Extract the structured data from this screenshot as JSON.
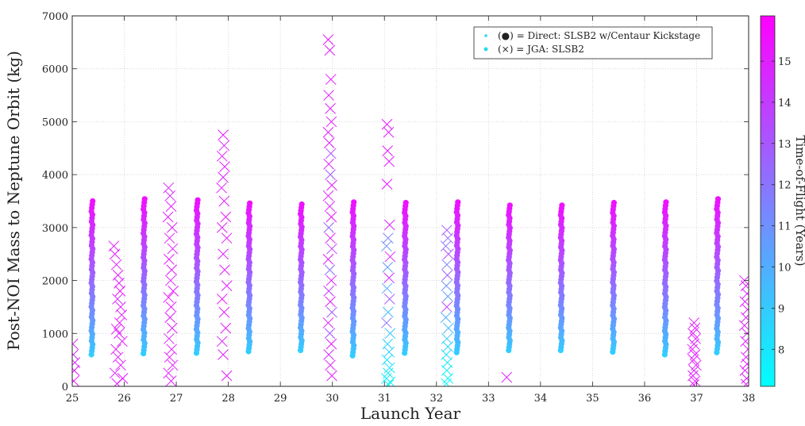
{
  "chart_data": {
    "type": "scatter",
    "xlabel": "Launch Year",
    "ylabel": "Post-NOI Mass to Neptune Orbit (kg)",
    "xlim": [
      25,
      38
    ],
    "ylim": [
      0,
      7000
    ],
    "xticks": [
      25,
      26,
      27,
      28,
      29,
      30,
      31,
      32,
      33,
      34,
      35,
      36,
      37,
      38
    ],
    "yticks": [
      0,
      1000,
      2000,
      3000,
      4000,
      5000,
      6000,
      7000
    ],
    "grid": true,
    "legend_position": "top-right",
    "colorbar": {
      "label": "Time-of-Flight (Years)",
      "range": [
        7.1,
        16.1
      ],
      "ticks": [
        8,
        9,
        10,
        11,
        12,
        13,
        14,
        15
      ],
      "colormap": "cool",
      "color_low": "#00ffff",
      "color_high": "#ff00ff"
    },
    "series": [
      {
        "name": "(●) = Direct: SLSB2 w/Centaur Kickstage",
        "marker": "dot",
        "launch_windows": [
          {
            "x": 25.38,
            "ymin": 600,
            "ymax": 3500
          },
          {
            "x": 26.38,
            "ymin": 620,
            "ymax": 3540
          },
          {
            "x": 27.4,
            "ymin": 630,
            "ymax": 3520
          },
          {
            "x": 28.4,
            "ymin": 660,
            "ymax": 3460
          },
          {
            "x": 29.4,
            "ymin": 680,
            "ymax": 3440
          },
          {
            "x": 30.4,
            "ymin": 580,
            "ymax": 3480
          },
          {
            "x": 31.4,
            "ymin": 630,
            "ymax": 3470
          },
          {
            "x": 32.4,
            "ymin": 640,
            "ymax": 3480
          },
          {
            "x": 33.4,
            "ymin": 680,
            "ymax": 3420
          },
          {
            "x": 34.4,
            "ymin": 680,
            "ymax": 3420
          },
          {
            "x": 35.4,
            "ymin": 650,
            "ymax": 3470
          },
          {
            "x": 36.4,
            "ymin": 600,
            "ymax": 3480
          },
          {
            "x": 37.4,
            "ymin": 640,
            "ymax": 3540
          }
        ]
      },
      {
        "name": "(×) = JGA: SLSB2",
        "marker": "x",
        "points": [
          [
            25.01,
            800,
            15.0
          ],
          [
            25.02,
            600,
            14.8
          ],
          [
            25.04,
            300,
            15.2
          ],
          [
            25.03,
            100,
            15.5
          ],
          [
            25.05,
            450,
            14.9
          ],
          [
            25.8,
            2650,
            15.3
          ],
          [
            25.82,
            2500,
            15.1
          ],
          [
            25.85,
            2300,
            14.9
          ],
          [
            25.88,
            2100,
            15.2
          ],
          [
            25.9,
            1950,
            15.0
          ],
          [
            25.92,
            1800,
            15.4
          ],
          [
            25.87,
            1650,
            14.8
          ],
          [
            25.93,
            1500,
            15.2
          ],
          [
            25.95,
            1350,
            15.0
          ],
          [
            25.91,
            1200,
            15.5
          ],
          [
            25.85,
            1080,
            15.3
          ],
          [
            25.9,
            1000,
            14.9
          ],
          [
            25.96,
            850,
            15.1
          ],
          [
            25.84,
            700,
            15.4
          ],
          [
            25.88,
            550,
            15.0
          ],
          [
            25.93,
            400,
            15.2
          ],
          [
            25.82,
            250,
            14.9
          ],
          [
            25.97,
            150,
            15.3
          ],
          [
            25.86,
            50,
            15.1
          ],
          [
            26.85,
            3750,
            15.0
          ],
          [
            26.88,
            3600,
            14.8
          ],
          [
            26.9,
            3400,
            15.2
          ],
          [
            26.84,
            3200,
            15.1
          ],
          [
            26.92,
            3000,
            14.9
          ],
          [
            26.87,
            2800,
            15.3
          ],
          [
            26.93,
            2600,
            15.0
          ],
          [
            26.86,
            2400,
            15.4
          ],
          [
            26.91,
            2200,
            15.2
          ],
          [
            26.89,
            2000,
            14.9
          ],
          [
            26.94,
            1800,
            15.1
          ],
          [
            26.85,
            1680,
            15.5
          ],
          [
            26.9,
            1500,
            15.3
          ],
          [
            26.88,
            1300,
            15.0
          ],
          [
            26.92,
            1100,
            15.2
          ],
          [
            26.86,
            900,
            14.8
          ],
          [
            26.91,
            700,
            15.1
          ],
          [
            26.87,
            550,
            15.4
          ],
          [
            26.93,
            400,
            15.0
          ],
          [
            26.85,
            250,
            15.2
          ],
          [
            26.9,
            100,
            15.3
          ],
          [
            27.9,
            4750,
            15.2
          ],
          [
            27.92,
            4550,
            15.0
          ],
          [
            27.88,
            4350,
            15.3
          ],
          [
            27.93,
            4150,
            15.1
          ],
          [
            27.9,
            3950,
            14.9
          ],
          [
            27.87,
            3750,
            15.2
          ],
          [
            27.92,
            3500,
            15.0
          ],
          [
            27.95,
            3200,
            15.4
          ],
          [
            27.88,
            3000,
            15.1
          ],
          [
            27.97,
            2800,
            15.3
          ],
          [
            27.9,
            2500,
            14.9
          ],
          [
            27.93,
            2200,
            15.2
          ],
          [
            27.97,
            1900,
            15.0
          ],
          [
            27.88,
            1650,
            15.3
          ],
          [
            27.92,
            1400,
            15.1
          ],
          [
            27.95,
            1100,
            15.4
          ],
          [
            27.88,
            850,
            15.0
          ],
          [
            27.9,
            600,
            15.2
          ],
          [
            27.97,
            200,
            15.1
          ],
          [
            29.92,
            6550,
            15.2
          ],
          [
            29.95,
            6350,
            15.0
          ],
          [
            29.97,
            5800,
            15.3
          ],
          [
            29.93,
            5500,
            15.1
          ],
          [
            29.96,
            5250,
            14.9
          ],
          [
            29.98,
            5000,
            15.2
          ],
          [
            29.92,
            4800,
            15.0
          ],
          [
            29.94,
            4600,
            15.3
          ],
          [
            29.97,
            4400,
            13.5
          ],
          [
            29.93,
            4200,
            15.1
          ],
          [
            29.96,
            4000,
            13.0
          ],
          [
            29.99,
            3800,
            15.2
          ],
          [
            29.92,
            3600,
            15.0
          ],
          [
            29.95,
            3400,
            14.8
          ],
          [
            29.98,
            3200,
            15.3
          ],
          [
            29.93,
            3000,
            12.5
          ],
          [
            29.96,
            2800,
            15.1
          ],
          [
            29.99,
            2600,
            13.8
          ],
          [
            29.92,
            2400,
            15.0
          ],
          [
            29.95,
            2200,
            12.0
          ],
          [
            29.98,
            2000,
            15.2
          ],
          [
            29.93,
            1800,
            14.0
          ],
          [
            29.96,
            1600,
            15.1
          ],
          [
            29.99,
            1400,
            12.8
          ],
          [
            29.92,
            1200,
            15.0
          ],
          [
            29.95,
            1000,
            13.2
          ],
          [
            29.98,
            800,
            15.3
          ],
          [
            29.93,
            600,
            14.5
          ],
          [
            29.96,
            400,
            15.1
          ],
          [
            29.99,
            200,
            15.0
          ],
          [
            31.05,
            4950,
            15.2
          ],
          [
            31.08,
            4800,
            15.0
          ],
          [
            31.06,
            4450,
            15.3
          ],
          [
            31.09,
            4250,
            15.1
          ],
          [
            31.05,
            3820,
            15.2
          ],
          [
            31.1,
            3050,
            14.8
          ],
          [
            31.07,
            2800,
            11.5
          ],
          [
            31.04,
            2650,
            11.0
          ],
          [
            31.11,
            2450,
            15.0
          ],
          [
            31.06,
            2250,
            10.5
          ],
          [
            31.09,
            2050,
            14.5
          ],
          [
            31.05,
            1850,
            10.0
          ],
          [
            31.1,
            1650,
            13.0
          ],
          [
            31.07,
            1400,
            9.5
          ],
          [
            31.04,
            1200,
            12.0
          ],
          [
            31.11,
            1000,
            9.0
          ],
          [
            31.06,
            800,
            8.5
          ],
          [
            31.09,
            650,
            8.8
          ],
          [
            31.05,
            500,
            8.2
          ],
          [
            31.1,
            350,
            8.0
          ],
          [
            31.07,
            250,
            7.8
          ],
          [
            31.04,
            150,
            7.6
          ],
          [
            31.11,
            80,
            7.5
          ],
          [
            31.08,
            30,
            7.4
          ],
          [
            32.2,
            2950,
            13.0
          ],
          [
            32.22,
            2800,
            12.5
          ],
          [
            32.18,
            2650,
            12.0
          ],
          [
            32.23,
            2500,
            13.5
          ],
          [
            32.2,
            2300,
            11.5
          ],
          [
            32.21,
            2100,
            12.8
          ],
          [
            32.19,
            1900,
            11.0
          ],
          [
            32.22,
            1700,
            10.5
          ],
          [
            32.2,
            1500,
            14.0
          ],
          [
            32.18,
            1300,
            10.0
          ],
          [
            32.23,
            1100,
            9.5
          ],
          [
            32.2,
            900,
            9.0
          ],
          [
            32.22,
            750,
            8.5
          ],
          [
            32.19,
            600,
            8.2
          ],
          [
            32.21,
            450,
            8.0
          ],
          [
            32.2,
            300,
            7.8
          ],
          [
            32.22,
            150,
            7.5
          ],
          [
            32.19,
            50,
            7.3
          ],
          [
            33.35,
            170,
            15.0
          ],
          [
            36.95,
            1200,
            15.2
          ],
          [
            36.97,
            1100,
            15.0
          ],
          [
            36.93,
            1000,
            15.3
          ],
          [
            36.98,
            900,
            15.1
          ],
          [
            36.95,
            800,
            14.9
          ],
          [
            36.92,
            700,
            15.2
          ],
          [
            36.97,
            600,
            15.0
          ],
          [
            36.94,
            500,
            15.3
          ],
          [
            36.99,
            400,
            15.1
          ],
          [
            36.95,
            300,
            15.0
          ],
          [
            36.93,
            200,
            15.2
          ],
          [
            36.97,
            100,
            15.0
          ],
          [
            36.95,
            30,
            15.3
          ],
          [
            37.92,
            2000,
            15.0
          ],
          [
            37.95,
            1900,
            15.2
          ],
          [
            37.97,
            1750,
            14.9
          ],
          [
            37.93,
            1600,
            15.1
          ],
          [
            37.98,
            1450,
            15.3
          ],
          [
            37.95,
            1300,
            15.0
          ],
          [
            37.92,
            1150,
            15.2
          ],
          [
            37.97,
            1000,
            14.8
          ],
          [
            37.94,
            850,
            15.1
          ],
          [
            37.99,
            700,
            15.3
          ],
          [
            37.95,
            550,
            15.0
          ],
          [
            37.97,
            420,
            15.2
          ],
          [
            37.93,
            300,
            15.1
          ],
          [
            37.96,
            150,
            15.0
          ],
          [
            37.95,
            40,
            15.3
          ]
        ]
      }
    ]
  }
}
